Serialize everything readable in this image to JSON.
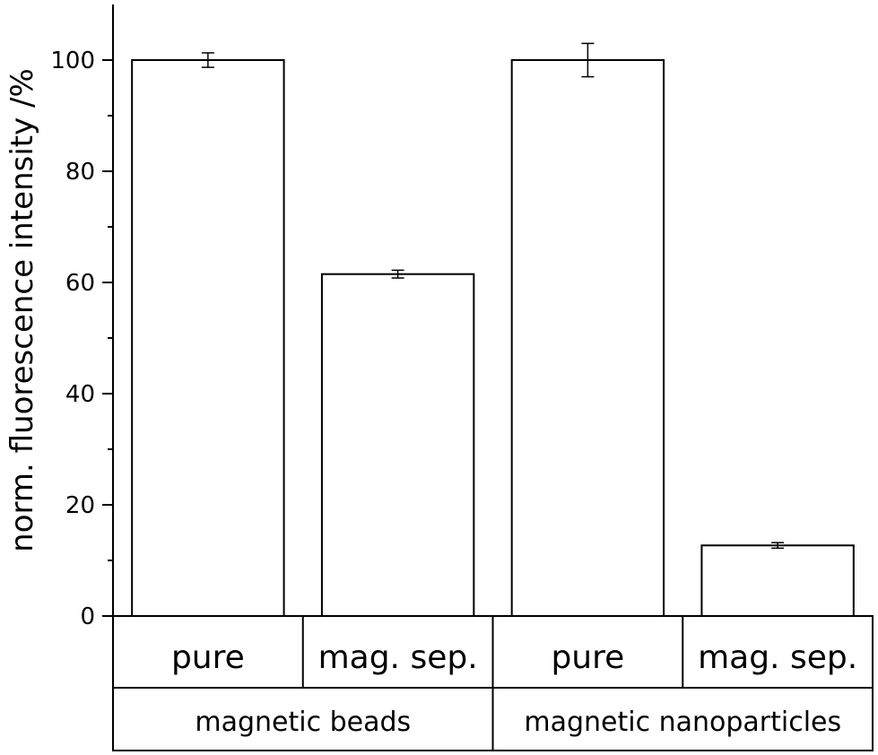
{
  "chart_data": {
    "type": "bar",
    "ylabel": "norm. fluorescence intensity /%",
    "ylim": [
      0,
      110
    ],
    "yticks": [
      0,
      20,
      40,
      60,
      80,
      100
    ],
    "yminor_step": 10,
    "categories": [
      "pure",
      "mag. sep.",
      "pure",
      "mag. sep."
    ],
    "groups": [
      {
        "label": "magnetic beads",
        "span": 2
      },
      {
        "label": "magnetic nanoparticles",
        "span": 2
      }
    ],
    "values": [
      100,
      61.5,
      100,
      12.7
    ],
    "errors": [
      1.3,
      0.7,
      3.0,
      0.5
    ],
    "grid": false,
    "bar_color": "#ffffff",
    "edge_color": "#000000"
  }
}
